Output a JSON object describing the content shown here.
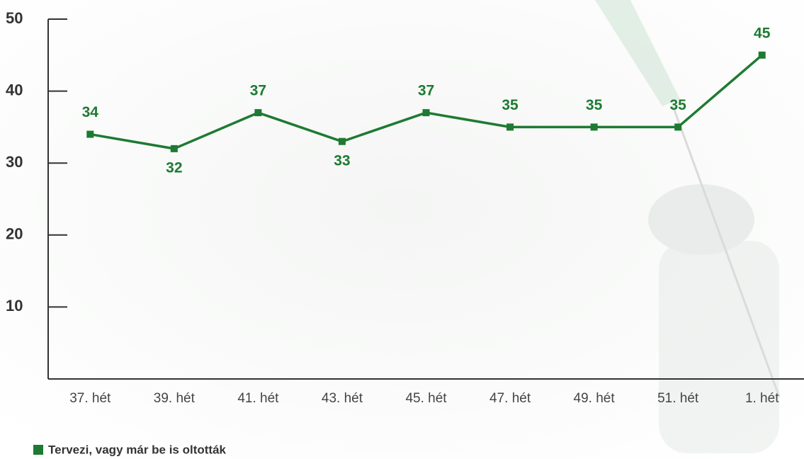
{
  "chart_data": {
    "type": "line",
    "categories": [
      "37. hét",
      "39. hét",
      "41. hét",
      "43. hét",
      "45. hét",
      "47. hét",
      "49. hét",
      "51. hét",
      "1. hét"
    ],
    "series": [
      {
        "name": "Tervezi, vagy már be is oltották",
        "color": "#1e7a32",
        "values": [
          34,
          32,
          37,
          33,
          37,
          35,
          35,
          35,
          45
        ]
      }
    ],
    "ylim": [
      0,
      50
    ],
    "yticks": [
      10,
      20,
      30,
      40,
      50
    ]
  }
}
